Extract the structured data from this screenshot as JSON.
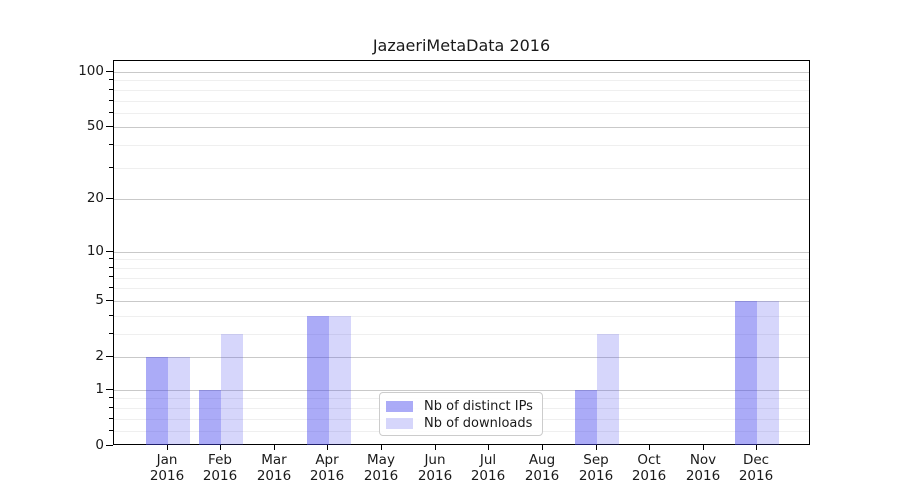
{
  "figure": {
    "background": "#ffffff"
  },
  "chart_data": {
    "type": "bar",
    "title": "JazaeriMetaData 2016",
    "xlabel": "",
    "ylabel": "",
    "scale": "log(1+y) pseudo-log axis",
    "ylim": [
      0,
      115
    ],
    "grid": true,
    "legend_position": "lower center inside plot",
    "year": "2016",
    "categories": [
      "Jan",
      "Feb",
      "Mar",
      "Apr",
      "May",
      "Jun",
      "Jul",
      "Aug",
      "Sep",
      "Oct",
      "Nov",
      "Dec"
    ],
    "series": [
      {
        "name": "Nb of distinct IPs",
        "fill": "rgba(68,68,238,0.45)",
        "values": [
          2,
          1,
          0,
          4,
          0,
          0,
          0,
          0,
          1,
          0,
          0,
          5
        ]
      },
      {
        "name": "Nb of downloads",
        "fill": "rgba(68,68,238,0.22)",
        "values": [
          2,
          3,
          0,
          4,
          0,
          0,
          0,
          0,
          3,
          0,
          0,
          5
        ]
      }
    ],
    "y_major_ticks": [
      0,
      1,
      2,
      5,
      10,
      20,
      50,
      100
    ],
    "y_minor_ticks": [
      0.2,
      0.4,
      0.6,
      0.8,
      3,
      4,
      6,
      7,
      8,
      9,
      30,
      40,
      60,
      70,
      80,
      90
    ],
    "colors": {
      "major_grid": "#c9c9c9",
      "minor_grid": "#efefef",
      "spine": "#000000",
      "text": "#1a1a1a",
      "bar_dark": "rgba(68,68,238,0.45)",
      "bar_light": "rgba(68,68,238,0.22)"
    }
  }
}
